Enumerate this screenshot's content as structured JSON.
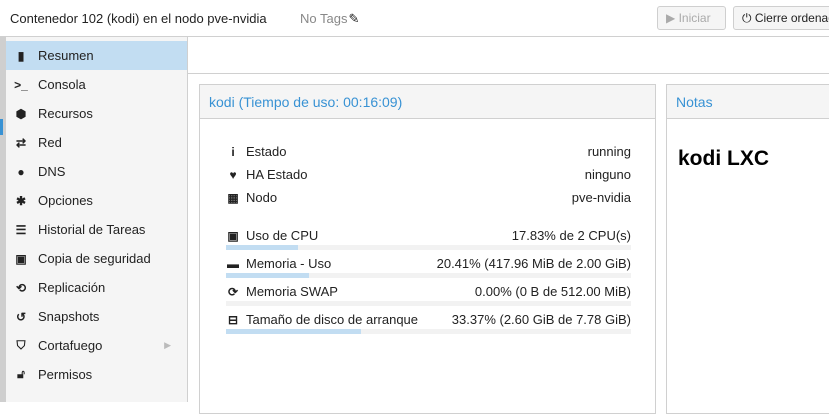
{
  "header": {
    "title": "Contenedor 102 (kodi) en el nodo pve-nvidia",
    "tags": "No Tags",
    "start_label": "Iniciar",
    "shutdown_label": "Cierre ordenado"
  },
  "sidebar": {
    "items": [
      {
        "label": "Resumen",
        "icon": "book-icon",
        "active": true
      },
      {
        "label": "Consola",
        "icon": "terminal-icon"
      },
      {
        "label": "Recursos",
        "icon": "cube-icon"
      },
      {
        "label": "Red",
        "icon": "exchange-icon"
      },
      {
        "label": "DNS",
        "icon": "globe-icon"
      },
      {
        "label": "Opciones",
        "icon": "gear-icon"
      },
      {
        "label": "Historial de Tareas",
        "icon": "list-icon"
      },
      {
        "label": "Copia de seguridad",
        "icon": "floppy-icon"
      },
      {
        "label": "Replicación",
        "icon": "retweet-icon"
      },
      {
        "label": "Snapshots",
        "icon": "history-icon"
      },
      {
        "label": "Cortafuego",
        "icon": "shield-icon",
        "has_submenu": true
      },
      {
        "label": "Permisos",
        "icon": "unlock-icon"
      }
    ]
  },
  "status": {
    "title": "kodi (Tiempo de uso: 00:16:09)",
    "info": [
      {
        "label": "Estado",
        "value": "running",
        "icon": "info-icon"
      },
      {
        "label": "HA Estado",
        "value": "ninguno",
        "icon": "heartbeat-icon"
      },
      {
        "label": "Nodo",
        "value": "pve-nvidia",
        "icon": "building-icon"
      }
    ],
    "usage": [
      {
        "label": "Uso de CPU",
        "value": "17.83% de 2 CPU(s)",
        "percent": 17.83,
        "icon": "cpu-icon"
      },
      {
        "label": "Memoria - Uso",
        "value": "20.41% (417.96 MiB de 2.00 GiB)",
        "percent": 20.41,
        "icon": "memory-icon"
      },
      {
        "label": "Memoria SWAP",
        "value": "0.00% (0 B de 512.00 MiB)",
        "percent": 0,
        "icon": "refresh-icon"
      },
      {
        "label": "Tamaño de disco de arranque",
        "value": "33.37% (2.60 GiB de 7.78 GiB)",
        "percent": 33.37,
        "icon": "hdd-icon"
      }
    ]
  },
  "notes": {
    "title": "Notas",
    "content": "kodi LXC"
  },
  "colors": {
    "accent": "#3892d4",
    "selected": "#c2ddf2"
  }
}
